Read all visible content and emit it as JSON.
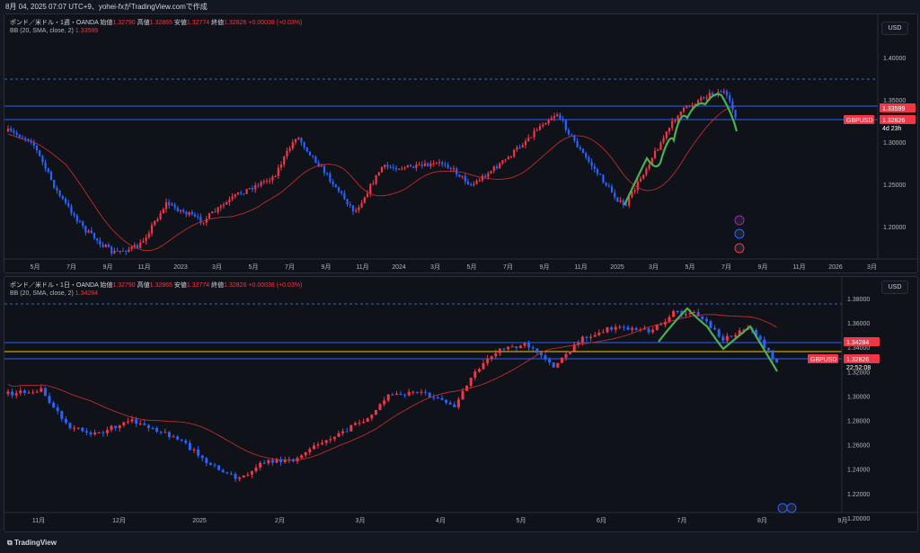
{
  "header": {
    "text": "8月 04, 2025 07:07 UTC+9、yohei-fxがTradingView.comで作成"
  },
  "colors": {
    "up": "#f23645",
    "down": "#2962ff",
    "bb_line": "#d32f2f",
    "wave": "#4caf50",
    "background": "#0f1219"
  },
  "panel1": {
    "symbol": "ポンド／米ドル・1週・OANDA",
    "open_label": "始値",
    "open": "1.32790",
    "high_label": "高値",
    "high": "1.32865",
    "low_label": "安値",
    "low": "1.32774",
    "close_label": "終値",
    "close": "1.32826",
    "change": "+0.00038 (+0.03%)",
    "bb_label": "BB (20, SMA, close, 2)",
    "bb_value": "1.33599",
    "currency": "USD",
    "price_ticks": [
      "1.40000",
      "1.35000",
      "1.30000",
      "1.25000",
      "1.20000"
    ],
    "time_ticks": [
      "5月",
      "7月",
      "9月",
      "11月",
      "2023",
      "3月",
      "5月",
      "7月",
      "9月",
      "11月",
      "2024",
      "3月",
      "5月",
      "7月",
      "9月",
      "11月",
      "2025",
      "3月",
      "5月",
      "7月",
      "9月",
      "11月",
      "2026",
      "3月"
    ],
    "tags": {
      "bb": "1.33599",
      "close": "1.32826",
      "countdown": "4d 23h",
      "symbol": "GBPUSD"
    },
    "event_icons": [
      "lightning-icon",
      "us-flag-icon",
      "uk-flag-icon"
    ]
  },
  "panel2": {
    "symbol": "ポンド／米ドル・1日・OANDA",
    "open_label": "始値",
    "open": "1.32790",
    "high_label": "高値",
    "high": "1.32865",
    "low_label": "安値",
    "low": "1.32774",
    "close_label": "終値",
    "close": "1.32826",
    "change": "+0.00038 (+0.03%)",
    "bb_label": "BB (20, SMA, close, 2)",
    "bb_value": "1.34284",
    "currency": "USD",
    "price_ticks": [
      "1.38000",
      "1.36000",
      "1.34000",
      "1.32000",
      "1.30000",
      "1.28000",
      "1.26000",
      "1.24000",
      "1.22000",
      "1.20000"
    ],
    "time_ticks": [
      "11月",
      "12月",
      "2025",
      "2月",
      "3月",
      "4月",
      "5月",
      "6月",
      "7月",
      "8月",
      "9月"
    ],
    "tags": {
      "bb": "1.34284",
      "close": "1.32826",
      "countdown": "22:52:08",
      "symbol": "GBPUSD"
    },
    "event_icons": [
      "us-flag-icon",
      "us-flag-icon"
    ]
  },
  "footer": {
    "brand": "TradingView"
  }
}
